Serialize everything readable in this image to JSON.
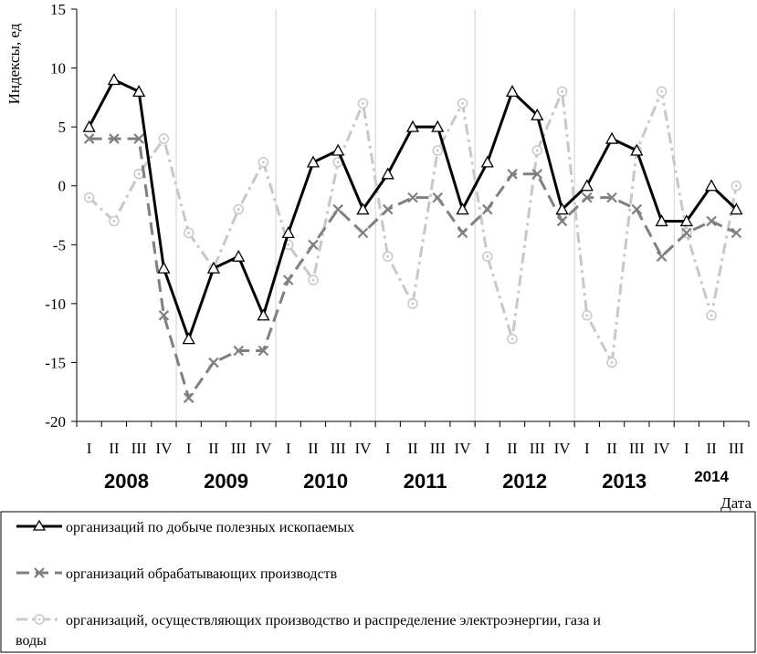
{
  "chart_data": {
    "type": "line",
    "ylabel": "Индексы, ед",
    "xlabel": "Дата",
    "ylim": [
      -20,
      15
    ],
    "yticks": [
      -20,
      -15,
      -10,
      -5,
      0,
      5,
      10,
      15
    ],
    "grid": "vertical lines between years",
    "legend_position": "bottom",
    "categories": [
      "I",
      "II",
      "III",
      "IV",
      "I",
      "II",
      "III",
      "IV",
      "I",
      "II",
      "III",
      "IV",
      "I",
      "II",
      "III",
      "IV",
      "I",
      "II",
      "III",
      "IV",
      "I",
      "II",
      "III",
      "IV",
      "I",
      "II",
      "III"
    ],
    "years": [
      {
        "label": "2008",
        "quarters": 4
      },
      {
        "label": "2009",
        "quarters": 4
      },
      {
        "label": "2010",
        "quarters": 4
      },
      {
        "label": "2011",
        "quarters": 4
      },
      {
        "label": "2012",
        "quarters": 4
      },
      {
        "label": "2013",
        "quarters": 4
      },
      {
        "label": "2014",
        "quarters": 3
      }
    ],
    "series": [
      {
        "name": "организаций по добыче полезных ископаемых",
        "color": "#000000",
        "marker": "triangle",
        "dash": "solid",
        "values": [
          5,
          9,
          8,
          -7,
          -13,
          -7,
          -6,
          -11,
          -4,
          2,
          3,
          -2,
          1,
          5,
          5,
          -2,
          2,
          8,
          6,
          -2,
          0,
          4,
          3,
          -3,
          -3,
          0,
          -2
        ]
      },
      {
        "name": "организаций обрабатывающих производств",
        "color": "#808080",
        "marker": "cross",
        "dash": "long-dash",
        "values": [
          4,
          4,
          4,
          -11,
          -18,
          -15,
          -14,
          -14,
          -8,
          -5,
          -2,
          -4,
          -2,
          -1,
          -1,
          -4,
          -2,
          1,
          1,
          -3,
          -1,
          -1,
          -2,
          -6,
          -4,
          -3,
          -4
        ]
      },
      {
        "name": "организаций, осуществляющих производство и распределение электроэнергии, газа и воды",
        "color": "#c8c8c8",
        "marker": "circle",
        "dash": "dash-dot",
        "values": [
          -1,
          -3,
          1,
          4,
          -4,
          -7,
          -2,
          2,
          -5,
          -8,
          2,
          7,
          -6,
          -10,
          3,
          7,
          -6,
          -13,
          3,
          8,
          -11,
          -15,
          3,
          8,
          -4,
          -11,
          0
        ]
      }
    ]
  }
}
